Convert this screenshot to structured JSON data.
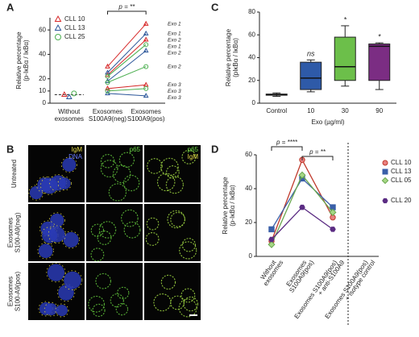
{
  "chart_data": [
    {
      "panel_label": "A",
      "type": "paired_line",
      "y_label": [
        "Relative percentage",
        "(p-IκBα / IκBα)"
      ],
      "categories": [
        [
          "Without",
          "exosomes"
        ],
        [
          "Exosomes",
          "S100A9(neg)"
        ],
        [
          "Exosomes",
          "S100A9(pos)"
        ]
      ],
      "ylim": [
        0,
        70
      ],
      "yticks": [
        0,
        10,
        20,
        40,
        60
      ],
      "reference_line": 7,
      "annotation": "p = **",
      "series": [
        {
          "name": "CLL 10",
          "color": "#d62728",
          "marker": "triangle",
          "without": 7,
          "exosomes": [
            {
              "name": "Exo 1",
              "values": [
                30,
                65
              ]
            },
            {
              "name": "Exo 2",
              "values": [
                23,
                52
              ]
            },
            {
              "name": "Exo 3",
              "values": [
                12,
                15
              ]
            }
          ]
        },
        {
          "name": "CLL 13",
          "color": "#2a5599",
          "marker": "triangle",
          "without": 5,
          "exosomes": [
            {
              "name": "Exo 1",
              "values": [
                25,
                57
              ]
            },
            {
              "name": "Exo 2",
              "values": [
                18,
                43
              ]
            },
            {
              "name": "Exo 3",
              "values": [
                8,
                6
              ]
            }
          ]
        },
        {
          "name": "CLL 25",
          "color": "#4caf50",
          "marker": "circle",
          "without": 8,
          "exosomes": [
            {
              "name": "Exo 1",
              "values": [
                22,
                48
              ]
            },
            {
              "name": "Exo 2",
              "values": [
                17,
                30
              ]
            },
            {
              "name": "Exo 3",
              "values": [
                10,
                12
              ]
            }
          ]
        }
      ]
    },
    {
      "panel_label": "C",
      "type": "box",
      "y_label": [
        "Relative percentage",
        "(pIκBα / IκBα)"
      ],
      "x_label": "Exo (µg/ml)",
      "categories": [
        "Control",
        "10",
        "30",
        "90"
      ],
      "colors": [
        "#d9534f",
        "#2e5aa8",
        "#6cbf4a",
        "#7b2d83"
      ],
      "ylim": [
        0,
        80
      ],
      "yticks": [
        0,
        20,
        40,
        60,
        80
      ],
      "boxes": [
        {
          "min": 6,
          "q1": 7,
          "median": 7.5,
          "q3": 8,
          "max": 9
        },
        {
          "min": 10,
          "q1": 12,
          "median": 22,
          "q3": 36,
          "max": 38
        },
        {
          "min": 15,
          "q1": 20,
          "median": 32,
          "q3": 58,
          "max": 68
        },
        {
          "min": 12,
          "q1": 20,
          "median": 50,
          "q3": 52,
          "max": 53
        }
      ],
      "annotations": [
        null,
        "ns",
        "*",
        "*"
      ]
    },
    {
      "panel_label": "D",
      "type": "line",
      "y_label": [
        "Relative percentage",
        "(p-IκBα / IκBα)"
      ],
      "categories": [
        [
          "Without",
          "exosomes"
        ],
        [
          "Exosomes",
          "S100A9(pos)"
        ],
        [
          "Exosomes S100A9(pos)",
          "+ anti-S100A9"
        ],
        [
          "Exosomes S100A9(pos)",
          "+ isotype control"
        ]
      ],
      "ylim": [
        0,
        60
      ],
      "yticks": [
        0,
        20,
        40,
        60
      ],
      "annotations": [
        {
          "text": "p = ****",
          "from": 0,
          "to": 1
        },
        {
          "text": "p = **",
          "from": 1,
          "to": 2
        }
      ],
      "series": [
        {
          "name": "CLL 10",
          "color": "#c0392b",
          "fill": "#e88080",
          "marker": "circle",
          "values": [
            9,
            57,
            23,
            null
          ]
        },
        {
          "name": "CLL 13",
          "color": "#3a5fa8",
          "fill": "#3a5fa8",
          "marker": "square",
          "values": [
            16,
            46,
            29,
            null
          ]
        },
        {
          "name": "CLL 05",
          "color": "#6aa84f",
          "fill": "#a6d785",
          "marker": "diamond",
          "values": [
            7,
            48,
            26,
            null
          ]
        },
        {
          "name": "CLL 20",
          "color": "#5b2c83",
          "fill": "#5b2c83",
          "marker": "hexagon",
          "values": [
            10,
            29,
            16,
            null
          ]
        }
      ]
    }
  ],
  "image_panel": {
    "panel_label": "B",
    "column_headers": [
      [
        "IgM",
        "DNA"
      ],
      [
        "p65"
      ],
      [
        "p65",
        "IgM"
      ]
    ],
    "row_labels": [
      [
        "Untreated"
      ],
      [
        "Exosomes",
        "S100-A9(neg)"
      ],
      [
        "Exosomes",
        "S100-A9(pos)"
      ]
    ]
  }
}
